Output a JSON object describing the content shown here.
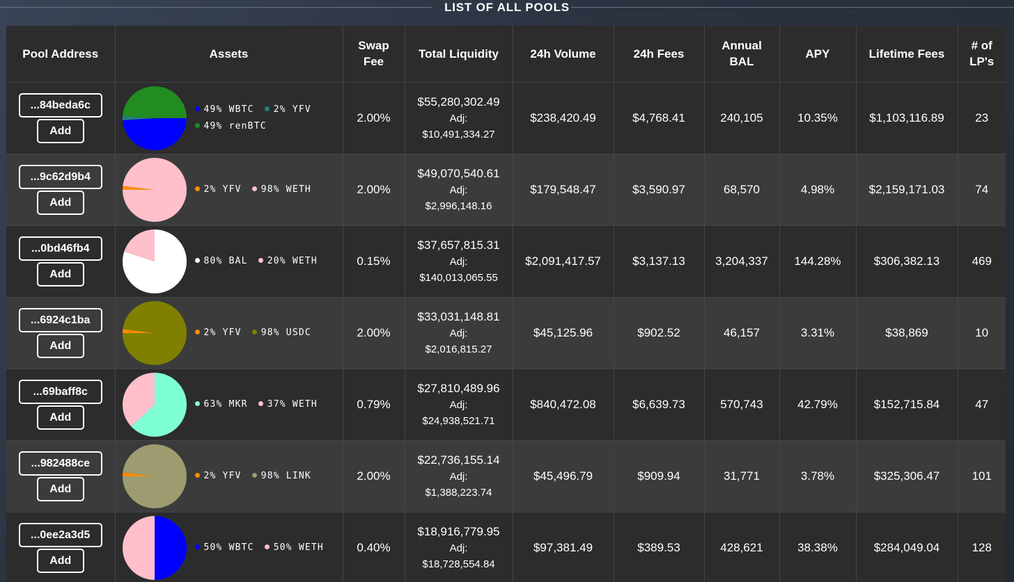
{
  "page": {
    "title": "LIST OF ALL POOLS"
  },
  "table": {
    "headers": {
      "pool_address": "Pool Address",
      "assets": "Assets",
      "swap_fee_1": "Swap",
      "swap_fee_2": "Fee",
      "total_liquidity": "Total Liquidity",
      "volume_24h": "24h Volume",
      "fees_24h": "24h Fees",
      "annual_bal_1": "Annual",
      "annual_bal_2": "BAL",
      "apy": "APY",
      "lifetime_fees": "Lifetime Fees",
      "lps_1": "# of",
      "lps_2": "LP's"
    },
    "add_label": "Add",
    "adj_label": "Adj:",
    "rows": [
      {
        "address": "...84beda6c",
        "assets": [
          {
            "label": "49% WBTC",
            "pct": 49,
            "color": "#0000ff"
          },
          {
            "label": "2% YFV",
            "pct": 2,
            "color": "#1f7f7f"
          },
          {
            "label": "49% renBTC",
            "pct": 49,
            "color": "#228b22"
          }
        ],
        "swap_fee": "2.00%",
        "liquidity": "$55,280,302.49",
        "liquidity_adj": "$10,491,334.27",
        "volume_24h": "$238,420.49",
        "fees_24h": "$4,768.41",
        "annual_bal": "240,105",
        "apy": "10.35%",
        "lifetime_fees": "$1,103,116.89",
        "lps": "23"
      },
      {
        "address": "...9c62d9b4",
        "assets": [
          {
            "label": "2% YFV",
            "pct": 2,
            "color": "#ff8c00"
          },
          {
            "label": "98% WETH",
            "pct": 98,
            "color": "#ffc0cb"
          }
        ],
        "swap_fee": "2.00%",
        "liquidity": "$49,070,540.61",
        "liquidity_adj": "$2,996,148.16",
        "volume_24h": "$179,548.47",
        "fees_24h": "$3,590.97",
        "annual_bal": "68,570",
        "apy": "4.98%",
        "lifetime_fees": "$2,159,171.03",
        "lps": "74"
      },
      {
        "address": "...0bd46fb4",
        "assets": [
          {
            "label": "80% BAL",
            "pct": 80,
            "color": "#ffffff"
          },
          {
            "label": "20% WETH",
            "pct": 20,
            "color": "#ffc0cb"
          }
        ],
        "swap_fee": "0.15%",
        "liquidity": "$37,657,815.31",
        "liquidity_adj": "$140,013,065.55",
        "volume_24h": "$2,091,417.57",
        "fees_24h": "$3,137.13",
        "annual_bal": "3,204,337",
        "apy": "144.28%",
        "lifetime_fees": "$306,382.13",
        "lps": "469"
      },
      {
        "address": "...6924c1ba",
        "assets": [
          {
            "label": "2% YFV",
            "pct": 2,
            "color": "#ff8c00"
          },
          {
            "label": "98% USDC",
            "pct": 98,
            "color": "#808000"
          }
        ],
        "swap_fee": "2.00%",
        "liquidity": "$33,031,148.81",
        "liquidity_adj": "$2,016,815.27",
        "volume_24h": "$45,125.96",
        "fees_24h": "$902.52",
        "annual_bal": "46,157",
        "apy": "3.31%",
        "lifetime_fees": "$38,869",
        "lps": "10"
      },
      {
        "address": "...69baff8c",
        "assets": [
          {
            "label": "63% MKR",
            "pct": 63,
            "color": "#7fffd4"
          },
          {
            "label": "37% WETH",
            "pct": 37,
            "color": "#ffc0cb"
          }
        ],
        "swap_fee": "0.79%",
        "liquidity": "$27,810,489.96",
        "liquidity_adj": "$24,938,521.71",
        "volume_24h": "$840,472.08",
        "fees_24h": "$6,639.73",
        "annual_bal": "570,743",
        "apy": "42.79%",
        "lifetime_fees": "$152,715.84",
        "lps": "47"
      },
      {
        "address": "...982488ce",
        "assets": [
          {
            "label": "2% YFV",
            "pct": 2,
            "color": "#ff8c00"
          },
          {
            "label": "98% LINK",
            "pct": 98,
            "color": "#9c9c70"
          }
        ],
        "swap_fee": "2.00%",
        "liquidity": "$22,736,155.14",
        "liquidity_adj": "$1,388,223.74",
        "volume_24h": "$45,496.79",
        "fees_24h": "$909.94",
        "annual_bal": "31,771",
        "apy": "3.78%",
        "lifetime_fees": "$325,306.47",
        "lps": "101"
      },
      {
        "address": "...0ee2a3d5",
        "assets": [
          {
            "label": "50% WBTC",
            "pct": 50,
            "color": "#0000ff"
          },
          {
            "label": "50% WETH",
            "pct": 50,
            "color": "#ffc0cb"
          }
        ],
        "swap_fee": "0.40%",
        "liquidity": "$18,916,779.95",
        "liquidity_adj": "$18,728,554.84",
        "volume_24h": "$97,381.49",
        "fees_24h": "$389.53",
        "annual_bal": "428,621",
        "apy": "38.38%",
        "lifetime_fees": "$284,049.04",
        "lps": "128"
      }
    ]
  }
}
